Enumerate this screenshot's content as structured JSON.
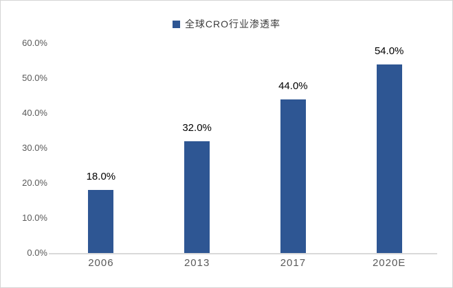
{
  "window": {
    "background": "#ffffff",
    "border_color": "#d4d4d4"
  },
  "legend": {
    "label": "全球CRO行业渗透率",
    "marker_color": "#2e5693"
  },
  "chart_data": {
    "type": "bar",
    "title": "全球CRO行业渗透率",
    "categories": [
      "2006",
      "2013",
      "2017",
      "2020E"
    ],
    "values": [
      18,
      32,
      44,
      54
    ],
    "value_labels": [
      "18.0%",
      "32.0%",
      "44.0%",
      "54.0%"
    ],
    "xlabel": "",
    "ylabel": "",
    "ylim": [
      0,
      60
    ],
    "ytick_values": [
      0,
      10,
      20,
      30,
      40,
      50,
      60
    ],
    "ytick_labels": [
      "0.0%",
      "10.0%",
      "20.0%",
      "30.0%",
      "40.0%",
      "50.0%",
      "60.0%"
    ],
    "grid": false,
    "legend_position": "top-center",
    "bar_color": "#2e5693",
    "axis_line_color": "#d9d9d9",
    "tick_label_color": "#595959",
    "value_label_color": "#000000"
  }
}
